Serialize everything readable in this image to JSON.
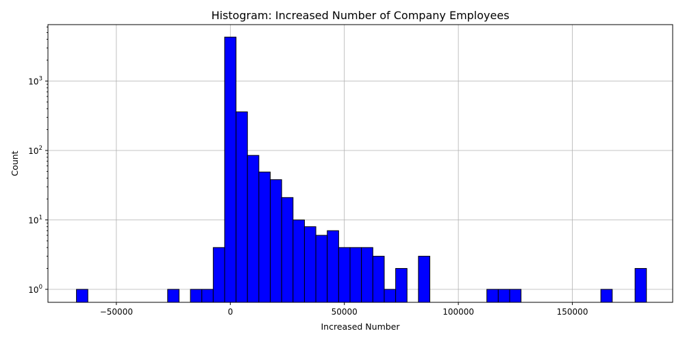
{
  "chart_data": {
    "type": "bar",
    "title": "Histogram: Increased Number of Company Employees",
    "xlabel": "Increased Number",
    "ylabel": "Count",
    "yscale": "log",
    "grid": true,
    "bar_color": "#0000ff",
    "edge_color": "#000000",
    "xlim": [
      -80000,
      194000
    ],
    "ylim": [
      0.65,
      6500
    ],
    "x_ticks": [
      {
        "value": -50000,
        "label": "−50000"
      },
      {
        "value": 0,
        "label": "0"
      },
      {
        "value": 50000,
        "label": "50000"
      },
      {
        "value": 100000,
        "label": "100000"
      },
      {
        "value": 150000,
        "label": "150000"
      }
    ],
    "y_ticks": [
      {
        "value": 1,
        "base": "10",
        "exp": "0"
      },
      {
        "value": 10,
        "base": "10",
        "exp": "1"
      },
      {
        "value": 100,
        "base": "10",
        "exp": "2"
      },
      {
        "value": 1000,
        "base": "10",
        "exp": "3"
      }
    ],
    "bins": [
      {
        "x0": -67500,
        "x1": -62500,
        "count": 1
      },
      {
        "x0": -27500,
        "x1": -22500,
        "count": 1
      },
      {
        "x0": -17500,
        "x1": -12500,
        "count": 1
      },
      {
        "x0": -12500,
        "x1": -7500,
        "count": 1
      },
      {
        "x0": -7500,
        "x1": -2500,
        "count": 4
      },
      {
        "x0": -2500,
        "x1": 2500,
        "count": 4300
      },
      {
        "x0": 2500,
        "x1": 7500,
        "count": 360
      },
      {
        "x0": 7500,
        "x1": 12500,
        "count": 85
      },
      {
        "x0": 12500,
        "x1": 17500,
        "count": 49
      },
      {
        "x0": 17500,
        "x1": 22500,
        "count": 38
      },
      {
        "x0": 22500,
        "x1": 27500,
        "count": 21
      },
      {
        "x0": 27500,
        "x1": 32500,
        "count": 10
      },
      {
        "x0": 32500,
        "x1": 37500,
        "count": 8
      },
      {
        "x0": 37500,
        "x1": 42500,
        "count": 6
      },
      {
        "x0": 42500,
        "x1": 47500,
        "count": 7
      },
      {
        "x0": 47500,
        "x1": 52500,
        "count": 4
      },
      {
        "x0": 52500,
        "x1": 57500,
        "count": 4
      },
      {
        "x0": 57500,
        "x1": 62500,
        "count": 4
      },
      {
        "x0": 62500,
        "x1": 67500,
        "count": 3
      },
      {
        "x0": 67500,
        "x1": 72500,
        "count": 1
      },
      {
        "x0": 72500,
        "x1": 77500,
        "count": 2
      },
      {
        "x0": 82500,
        "x1": 87500,
        "count": 3
      },
      {
        "x0": 112500,
        "x1": 117500,
        "count": 1
      },
      {
        "x0": 117500,
        "x1": 122500,
        "count": 1
      },
      {
        "x0": 122500,
        "x1": 127500,
        "count": 1
      },
      {
        "x0": 162500,
        "x1": 167500,
        "count": 1
      },
      {
        "x0": 177500,
        "x1": 182500,
        "count": 2
      }
    ]
  }
}
